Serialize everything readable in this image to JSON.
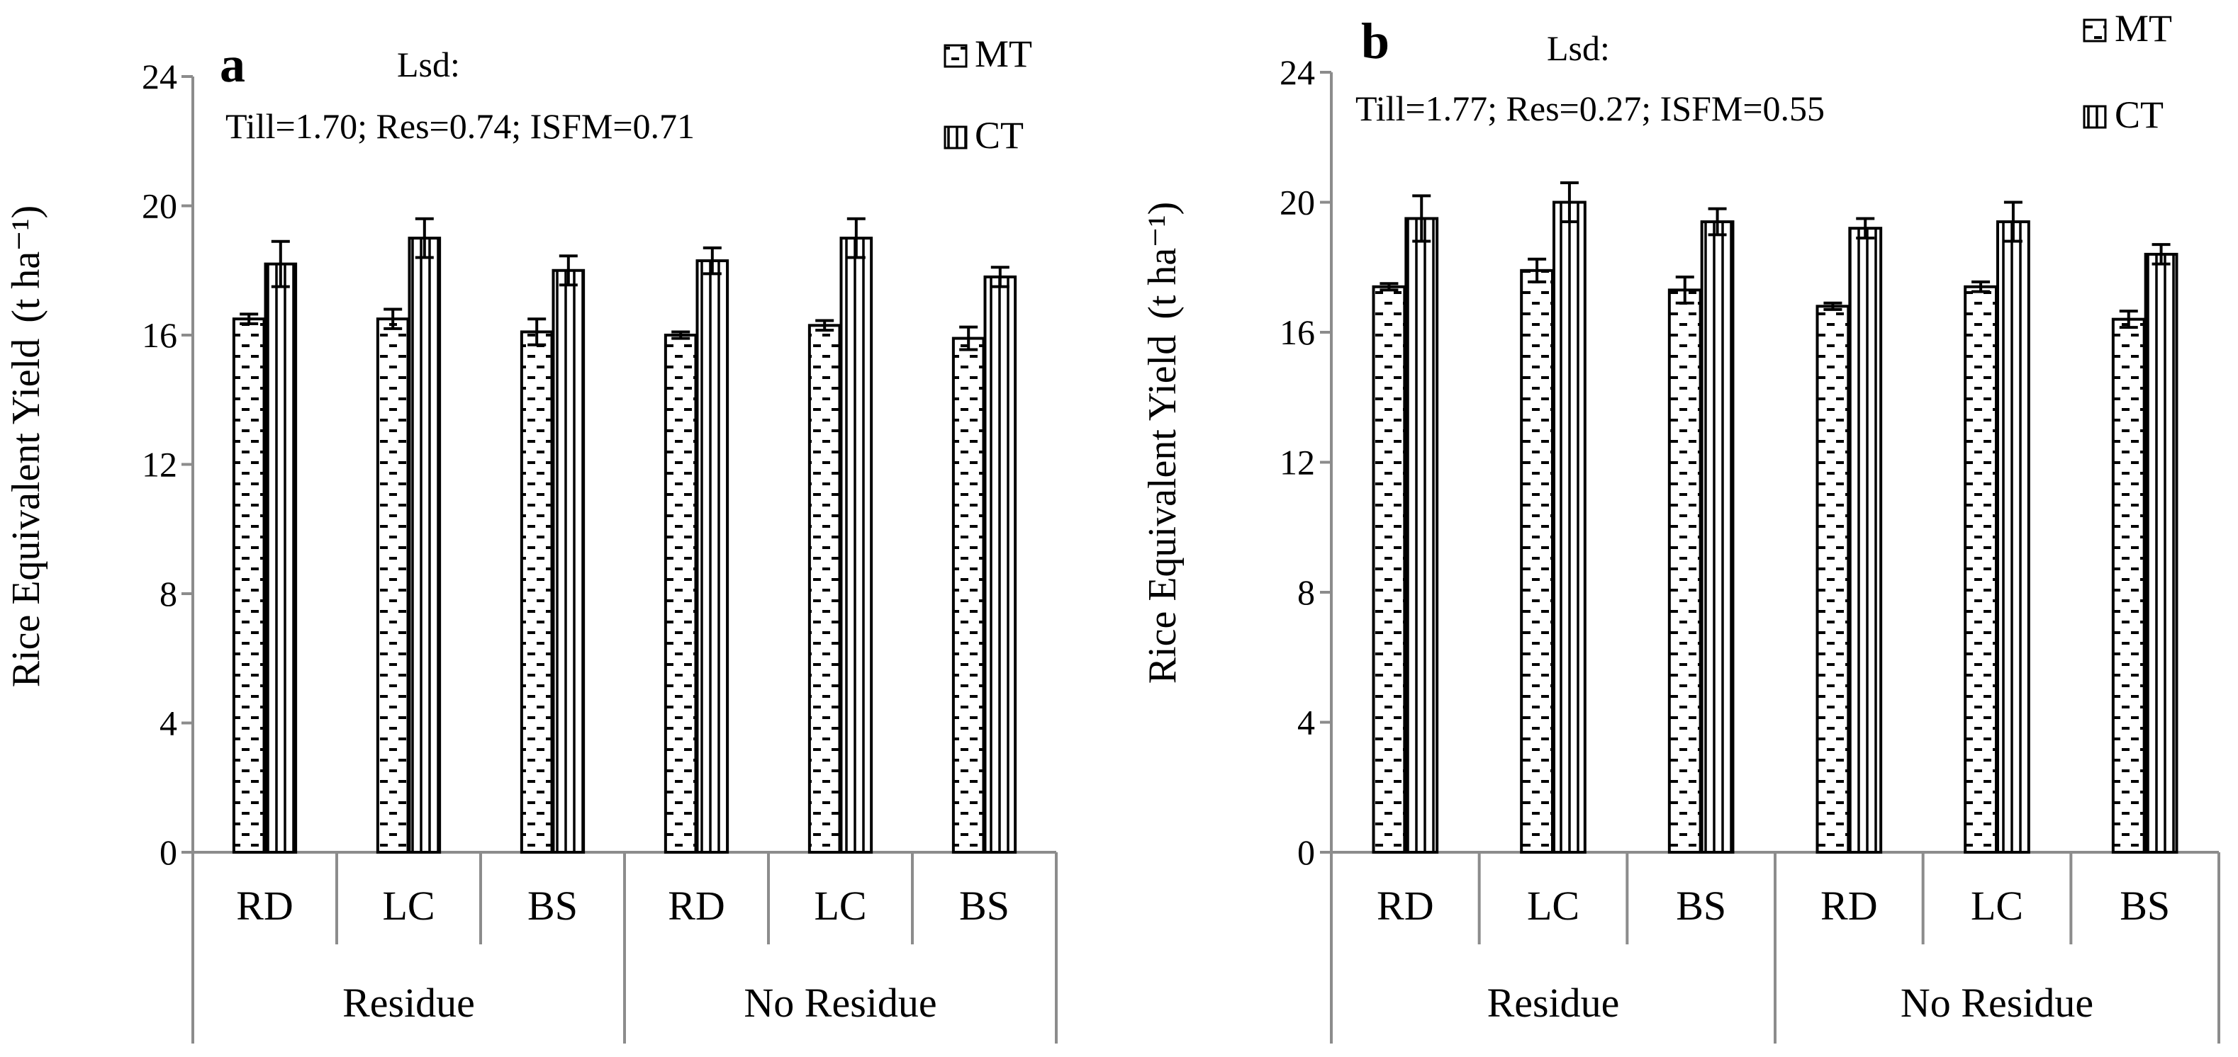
{
  "legend": [
    {
      "key": "MT",
      "label": "MT",
      "pattern": "dashes"
    },
    {
      "key": "CT",
      "label": "CT",
      "pattern": "vlines"
    }
  ],
  "chart_data": [
    {
      "type": "bar",
      "panel_label": "a",
      "ylabel": "Rice Equivalent Yield",
      "ylabel_unit": "(t ha⁻¹)",
      "ylim": [
        0,
        24
      ],
      "yticks": [
        0,
        4,
        8,
        12,
        16,
        20,
        24
      ],
      "categories": [
        "RD",
        "LC",
        "BS",
        "RD",
        "LC",
        "BS"
      ],
      "groups": [
        {
          "label": "Residue",
          "span": [
            0,
            2
          ]
        },
        {
          "label": "No Residue",
          "span": [
            3,
            5
          ]
        }
      ],
      "annotation": {
        "title": "Lsd:",
        "line": "Till=1.70;   Res=0.74; ISFM=0.71"
      },
      "series": [
        {
          "name": "MT",
          "values": [
            16.5,
            16.5,
            16.1,
            16.0,
            16.3,
            15.9
          ],
          "errors": [
            0.15,
            0.3,
            0.4,
            0.1,
            0.15,
            0.35
          ]
        },
        {
          "name": "CT",
          "values": [
            18.2,
            19.0,
            18.0,
            18.3,
            19.0,
            17.8
          ],
          "errors": [
            0.7,
            0.6,
            0.45,
            0.4,
            0.6,
            0.3
          ]
        }
      ]
    },
    {
      "type": "bar",
      "panel_label": "b",
      "ylabel": "Rice Equivalent Yield",
      "ylabel_unit": "(t ha⁻¹)",
      "ylim": [
        0,
        24
      ],
      "yticks": [
        0,
        4,
        8,
        12,
        16,
        20,
        24
      ],
      "categories": [
        "RD",
        "LC",
        "BS",
        "RD",
        "LC",
        "BS"
      ],
      "groups": [
        {
          "label": "Residue",
          "span": [
            0,
            2
          ]
        },
        {
          "label": "No Residue",
          "span": [
            3,
            5
          ]
        }
      ],
      "annotation": {
        "title": "Lsd:",
        "line": "Till=1.77;   Res=0.27; ISFM=0.55"
      },
      "series": [
        {
          "name": "MT",
          "values": [
            17.4,
            17.9,
            17.3,
            16.8,
            17.4,
            16.4
          ],
          "errors": [
            0.1,
            0.35,
            0.4,
            0.1,
            0.15,
            0.25
          ]
        },
        {
          "name": "CT",
          "values": [
            19.5,
            20.0,
            19.4,
            19.2,
            19.4,
            18.4
          ],
          "errors": [
            0.7,
            0.6,
            0.4,
            0.3,
            0.6,
            0.3
          ]
        }
      ]
    }
  ]
}
